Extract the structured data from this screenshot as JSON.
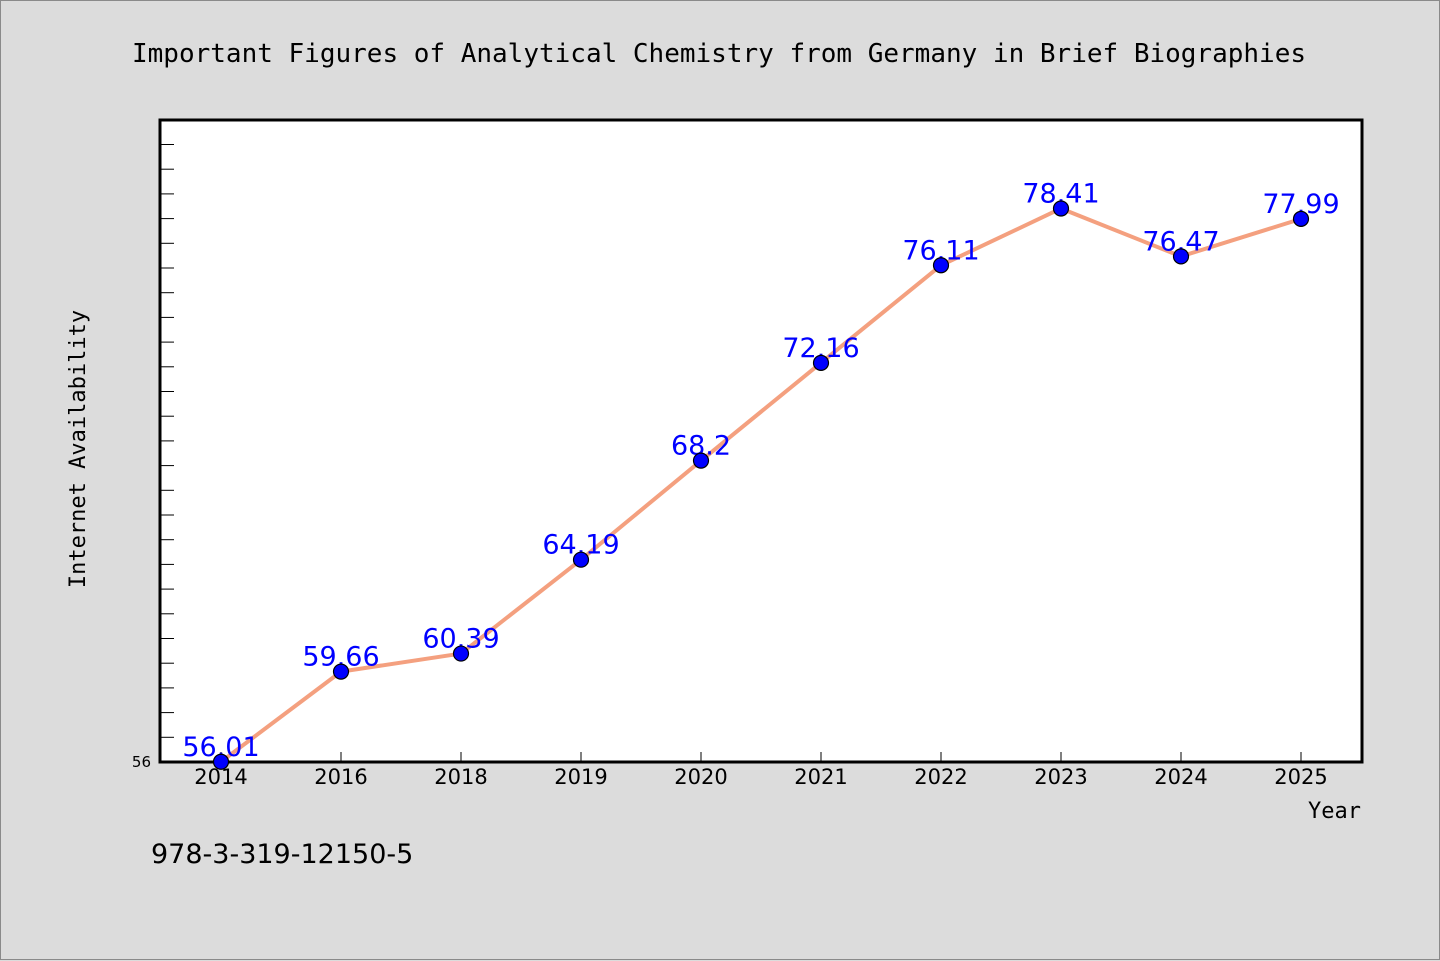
{
  "page": {
    "isbn": "978-3-319-12150-5"
  },
  "chart_data": {
    "type": "line",
    "title": "Important Figures of Analytical Chemistry from Germany in Brief Biographies",
    "xlabel": "Year",
    "ylabel": "Internet Availability",
    "categories": [
      "2014",
      "2016",
      "2018",
      "2019",
      "2020",
      "2021",
      "2022",
      "2023",
      "2024",
      "2025"
    ],
    "series": [
      {
        "values": [
          56.01,
          59.66,
          60.39,
          64.19,
          68.2,
          72.16,
          76.11,
          78.41,
          76.47,
          77.99
        ]
      }
    ],
    "data_labels": [
      "56.01",
      "59.66",
      "60.39",
      "64.19",
      "68.2",
      "72.16",
      "76.11",
      "78.41",
      "76.47",
      "77.99"
    ],
    "y_tick_labels": [
      "56"
    ],
    "ylim": [
      56,
      82
    ],
    "grid": false,
    "legend": "none",
    "colors": {
      "line": "#f4a07f",
      "marker": "#0000ff",
      "data_label": "#0000ff",
      "plot_background": "#ffffff",
      "page_background": "#dcdcdc"
    }
  }
}
